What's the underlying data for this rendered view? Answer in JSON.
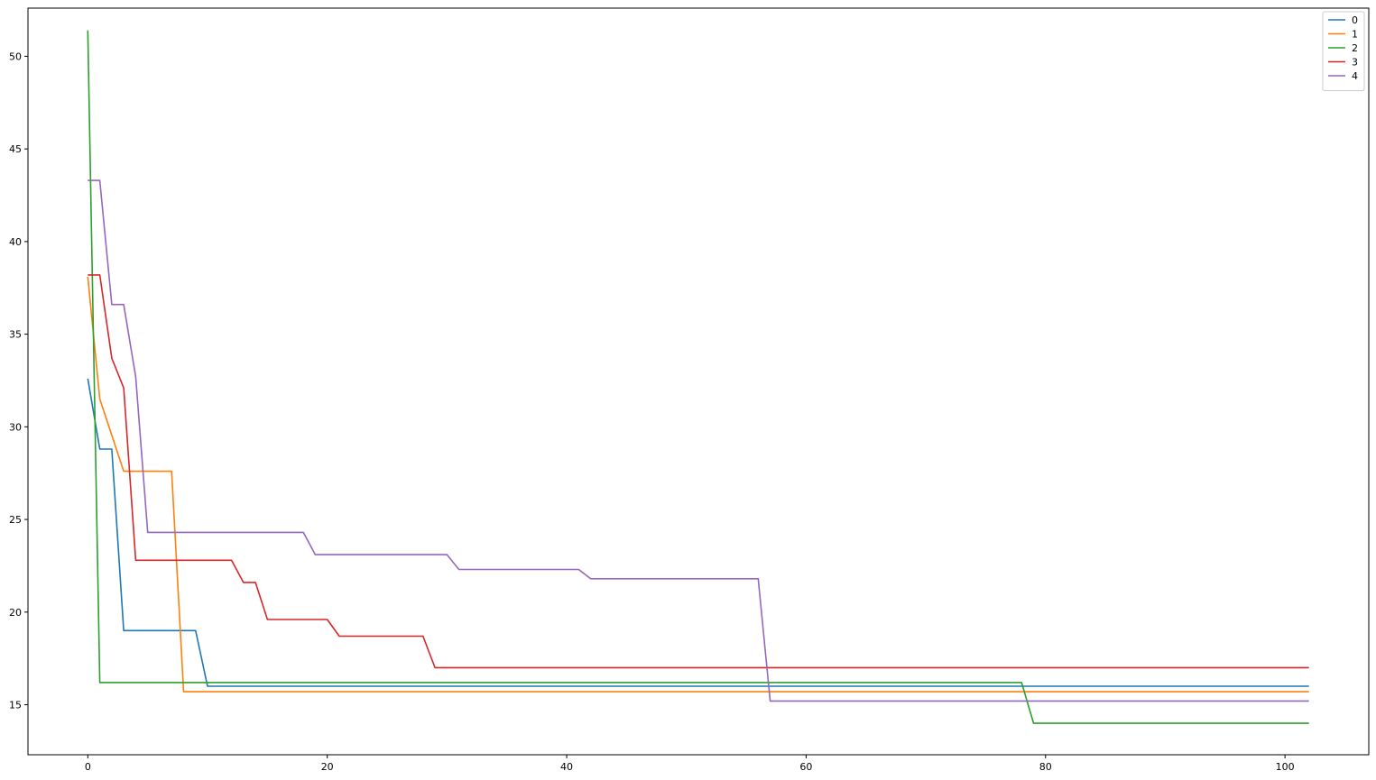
{
  "chart_data": {
    "type": "line",
    "title": "",
    "xlabel": "",
    "ylabel": "",
    "xlim": [
      -5,
      107
    ],
    "ylim": [
      12.3,
      52.6
    ],
    "x_ticks": [
      0,
      20,
      40,
      60,
      80,
      100
    ],
    "y_ticks": [
      15,
      20,
      25,
      30,
      35,
      40,
      45,
      50
    ],
    "grid": false,
    "legend_position": "top-right",
    "series": [
      {
        "name": "0",
        "color": "#1f77b4",
        "points": [
          [
            0,
            32.6
          ],
          [
            1,
            28.8
          ],
          [
            2,
            28.8
          ],
          [
            3,
            19.0
          ],
          [
            9,
            19.0
          ],
          [
            10,
            16.0
          ],
          [
            102,
            16.0
          ]
        ]
      },
      {
        "name": "1",
        "color": "#ff7f0e",
        "points": [
          [
            0,
            38.1
          ],
          [
            1,
            31.5
          ],
          [
            3,
            27.6
          ],
          [
            7,
            27.6
          ],
          [
            8,
            15.7
          ],
          [
            102,
            15.7
          ]
        ]
      },
      {
        "name": "2",
        "color": "#2ca02c",
        "points": [
          [
            0,
            51.4
          ],
          [
            1,
            16.2
          ],
          [
            78,
            16.2
          ],
          [
            79,
            14.0
          ],
          [
            102,
            14.0
          ]
        ]
      },
      {
        "name": "3",
        "color": "#d62728",
        "points": [
          [
            0,
            38.2
          ],
          [
            1,
            38.2
          ],
          [
            2,
            33.7
          ],
          [
            3,
            32.1
          ],
          [
            4,
            22.8
          ],
          [
            12,
            22.8
          ],
          [
            13,
            21.6
          ],
          [
            14,
            21.6
          ],
          [
            15,
            19.6
          ],
          [
            20,
            19.6
          ],
          [
            21,
            18.7
          ],
          [
            28,
            18.7
          ],
          [
            29,
            17.0
          ],
          [
            102,
            17.0
          ]
        ]
      },
      {
        "name": "4",
        "color": "#9467bd",
        "points": [
          [
            0,
            43.3
          ],
          [
            1,
            43.3
          ],
          [
            2,
            36.6
          ],
          [
            3,
            36.6
          ],
          [
            4,
            32.7
          ],
          [
            5,
            24.3
          ],
          [
            18,
            24.3
          ],
          [
            19,
            23.1
          ],
          [
            30,
            23.1
          ],
          [
            31,
            22.3
          ],
          [
            41,
            22.3
          ],
          [
            42,
            21.8
          ],
          [
            56,
            21.8
          ],
          [
            57,
            15.2
          ],
          [
            102,
            15.2
          ]
        ]
      }
    ]
  }
}
